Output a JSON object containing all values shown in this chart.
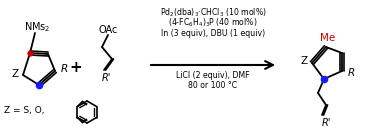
{
  "background_color": "#ffffff",
  "fig_width": 3.78,
  "fig_height": 1.32,
  "dpi": 100,
  "rc_line1": "Pd$_2$(dba)$_3$·CHCl$_3$ (10 mol%)",
  "rc_line2": "(4-FC$_6$H$_4$)$_3$P (40 mol%)",
  "rc_line3": "In (3 equiv), DBU (1 equiv)",
  "rc_line4": "LiCl (2 equiv), DMF",
  "rc_line5": "80 or 100 °C",
  "red_color": "#cc0000",
  "blue_color": "#1a1aff",
  "black_color": "#000000"
}
